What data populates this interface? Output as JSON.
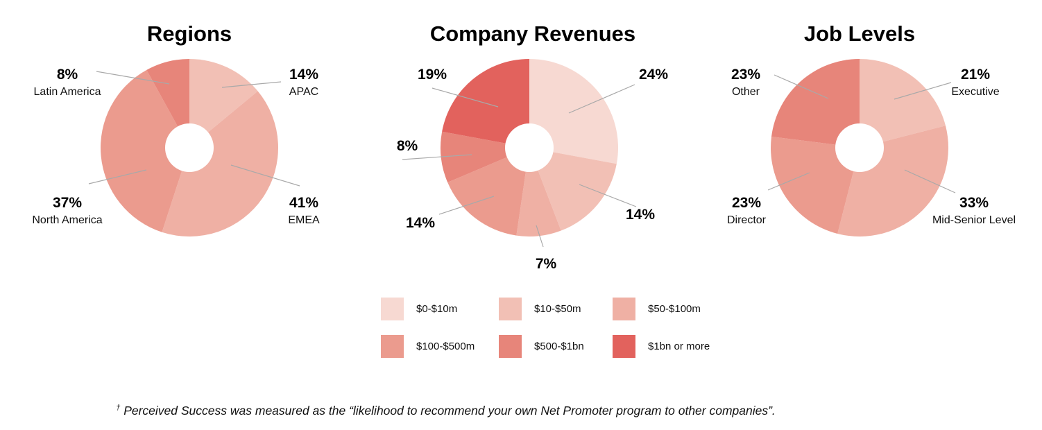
{
  "colors": {
    "c1": "#f7d9d2",
    "c2": "#f2c0b5",
    "c3": "#efb0a4",
    "c4": "#eb9b8e",
    "c5": "#e7857a",
    "c6": "#e2625d"
  },
  "chart_data": [
    {
      "type": "pie",
      "title": "Regions",
      "slices": [
        {
          "label": "APAC",
          "value": 14,
          "display": "14%",
          "color": "#f2c0b5"
        },
        {
          "label": "EMEA",
          "value": 41,
          "display": "41%",
          "color": "#efb0a4"
        },
        {
          "label": "North America",
          "value": 37,
          "display": "37%",
          "color": "#eb9b8e"
        },
        {
          "label": "Latin America",
          "value": 8,
          "display": "8%",
          "color": "#e7857a"
        }
      ]
    },
    {
      "type": "pie",
      "title": "Company Revenues",
      "slices": [
        {
          "label": "$0-$10m",
          "value": 24,
          "display": "24%",
          "color": "#f7d9d2"
        },
        {
          "label": "$10-$50m",
          "value": 14,
          "display": "14%",
          "color": "#f2c0b5"
        },
        {
          "label": "$50-$100m",
          "value": 7,
          "display": "7%",
          "color": "#efb0a4"
        },
        {
          "label": "$100-$500m",
          "value": 14,
          "display": "14%",
          "color": "#eb9b8e"
        },
        {
          "label": "$500-$1bn",
          "value": 8,
          "display": "8%",
          "color": "#e7857a"
        },
        {
          "label": "$1bn or more",
          "value": 19,
          "display": "19%",
          "color": "#e2625d"
        }
      ],
      "legend": [
        "$0-$10m",
        "$10-$50m",
        "$50-$100m",
        "$100-$500m",
        "$500-$1bn",
        "$1bn or more"
      ]
    },
    {
      "type": "pie",
      "title": "Job Levels",
      "slices": [
        {
          "label": "Executive",
          "value": 21,
          "display": "21%",
          "color": "#f2c0b5"
        },
        {
          "label": "Mid-Senior Level",
          "value": 33,
          "display": "33%",
          "color": "#efb0a4"
        },
        {
          "label": "Director",
          "value": 23,
          "display": "23%",
          "color": "#eb9b8e"
        },
        {
          "label": "Other",
          "value": 23,
          "display": "23%",
          "color": "#e7857a"
        }
      ]
    }
  ],
  "footnote": {
    "mark": "†",
    "text": "Perceived Success was measured as the “likelihood to recommend your own Net Promoter program to other companies”."
  }
}
